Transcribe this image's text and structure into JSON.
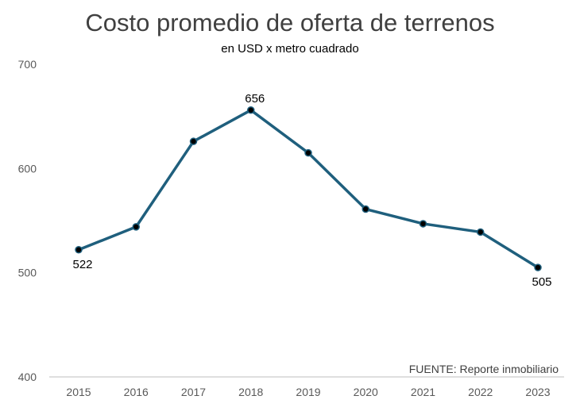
{
  "chart_data": {
    "type": "line",
    "title": "Costo promedio de oferta de terrenos",
    "subtitle": "en USD x metro cuadrado",
    "xlabel": "",
    "ylabel": "",
    "x": [
      "2015",
      "2016",
      "2017",
      "2018",
      "2019",
      "2020",
      "2021",
      "2022",
      "2023"
    ],
    "series": [
      {
        "values": [
          522,
          544,
          626,
          656,
          615,
          561,
          547,
          539,
          505
        ]
      }
    ],
    "ylim": [
      400,
      700
    ],
    "yticks": [
      "400",
      "500",
      "600",
      "700"
    ],
    "data_labels": [
      {
        "index": 0,
        "text": "522",
        "position": "below"
      },
      {
        "index": 3,
        "text": "656",
        "position": "above"
      },
      {
        "index": 8,
        "text": "505",
        "position": "below"
      }
    ],
    "grid": false,
    "legend": "none",
    "source_note": "FUENTE: Reporte inmobiliario",
    "colors": {
      "line": "#1f5f7d",
      "marker": "#000000",
      "axis": "#bfbfbf"
    }
  }
}
